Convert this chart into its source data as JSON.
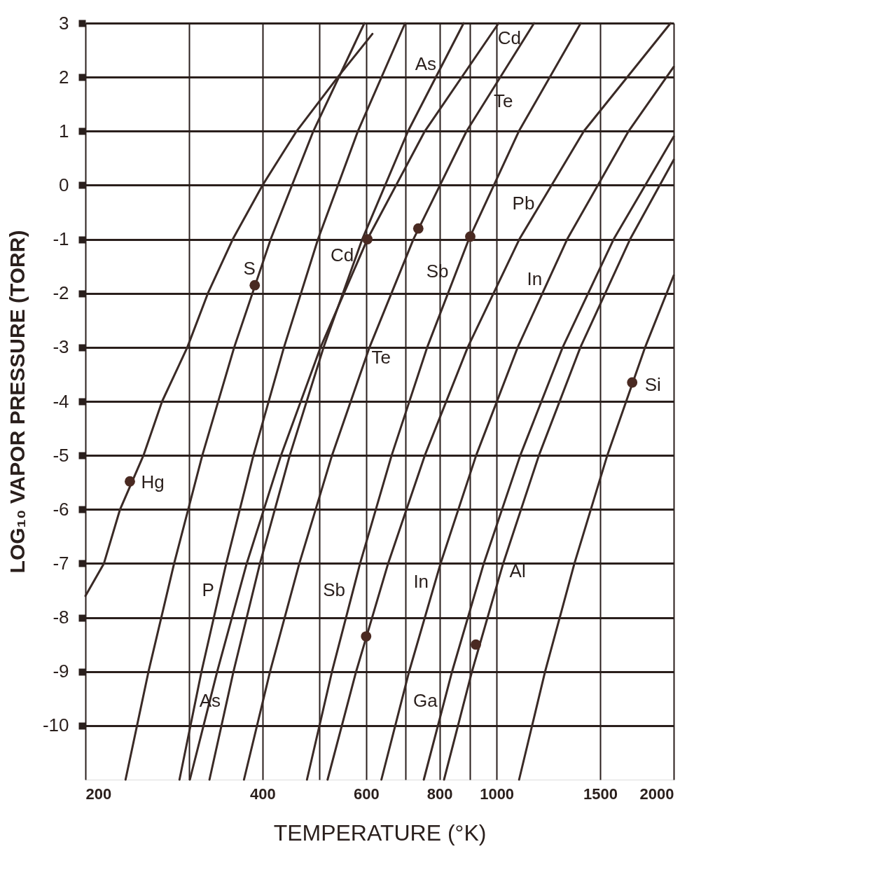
{
  "chart_data": {
    "type": "line",
    "xlabel": "TEMPERATURE (°K)",
    "ylabel": "LOG₁₀ VAPOR PRESSURE (TORR)",
    "log": "x",
    "xlim": [
      200,
      2000
    ],
    "ylim": [
      -11,
      3
    ],
    "xticks": [
      200,
      {
        "value": 300,
        "label": null
      },
      400,
      {
        "value": 500,
        "label": null
      },
      600,
      {
        "value": 700,
        "label": null
      },
      800,
      {
        "value": 900,
        "label": null
      },
      1000,
      1500,
      2000
    ],
    "yticks": [
      3,
      2,
      1,
      0,
      -1,
      -2,
      -3,
      -4,
      -5,
      -6,
      -7,
      -8,
      -9,
      -10
    ],
    "grid": true,
    "line_style": "solid",
    "marker": "none",
    "series": [
      {
        "name": "Hg",
        "color": "#3a2a26",
        "x": [
          200,
          215,
          229,
          251,
          270,
          298,
          323,
          356,
          400,
          457,
          537,
          615
        ],
        "values": [
          -7.6,
          -7,
          -6,
          -5,
          -4,
          -3,
          -2,
          -1,
          0,
          1,
          2,
          2.8
        ]
      },
      {
        "name": "S",
        "color": "#3a2a26",
        "x": [
          234,
          256,
          283,
          316,
          358,
          413,
          488,
          596
        ],
        "values": [
          -11,
          -9,
          -7,
          -5,
          -3,
          -1,
          1,
          3
        ]
      },
      {
        "name": "P",
        "color": "#3a2a26",
        "x": [
          289,
          315,
          347,
          386,
          435,
          497,
          581,
          699
        ],
        "values": [
          -11,
          -9,
          -7,
          -5,
          -3,
          -1,
          1,
          3
        ]
      },
      {
        "name": "Cd",
        "color": "#3a2a26",
        "x": [
          301,
          335,
          376,
          430,
          502,
          603,
          755,
          1008
        ],
        "values": [
          -11,
          -9,
          -7,
          -5,
          -3,
          -1,
          1,
          3
        ]
      },
      {
        "name": "As",
        "color": "#3a2a26",
        "x": [
          325,
          357,
          396,
          445,
          508,
          591,
          707,
          879
        ],
        "values": [
          -11,
          -9,
          -7,
          -5,
          -3,
          -1,
          1,
          3
        ]
      },
      {
        "name": "Te",
        "color": "#3a2a26",
        "x": [
          372,
          412,
          462,
          525,
          608,
          722,
          889,
          1158
        ],
        "values": [
          -11,
          -9,
          -7,
          -5,
          -3,
          -1,
          1,
          3
        ]
      },
      {
        "name": "Sb",
        "color": "#3a2a26",
        "x": [
          476,
          525,
          586,
          663,
          762,
          897,
          1091,
          1390
        ],
        "values": [
          -11,
          -9,
          -7,
          -5,
          -3,
          -1,
          1,
          3
        ]
      },
      {
        "name": "Pb",
        "color": "#3a2a26",
        "x": [
          516,
          577,
          654,
          755,
          893,
          1093,
          1407,
          1976
        ],
        "values": [
          -11,
          -9,
          -7,
          -5,
          -3,
          -1,
          1,
          3
        ]
      },
      {
        "name": "In",
        "color": "#3a2a26",
        "x": [
          637,
          710,
          803,
          923,
          1086,
          1318,
          1676,
          2000
        ],
        "values": [
          -11,
          -9,
          -7,
          -5,
          -3,
          -1,
          1,
          2.19
        ]
      },
      {
        "name": "Ga",
        "color": "#3a2a26",
        "x": [
          752,
          840,
          951,
          1097,
          1295,
          1581,
          2000
        ],
        "values": [
          -11,
          -9,
          -7,
          -5,
          -3,
          -1,
          0.9
        ]
      },
      {
        "name": "Al",
        "color": "#3a2a26",
        "x": [
          814,
          908,
          1026,
          1180,
          1388,
          1686,
          2000
        ],
        "values": [
          -11,
          -9,
          -7,
          -5,
          -3,
          -1,
          0.47
        ]
      },
      {
        "name": "Si",
        "color": "#3a2a26",
        "x": [
          1092,
          1209,
          1356,
          1542,
          1788,
          2000
        ],
        "values": [
          -11,
          -9,
          -7,
          -5,
          -3,
          -1.67
        ]
      },
      {
        "type": "scatter",
        "marker": "circle",
        "color": "#4a2a22",
        "x": [
          238,
          388,
          603,
          736,
          902,
          600,
          922,
          1700
        ],
        "values": [
          -5.48,
          -1.85,
          -1,
          -0.8,
          -0.95,
          -8.35,
          -8.5,
          -3.65
        ]
      }
    ]
  }
}
